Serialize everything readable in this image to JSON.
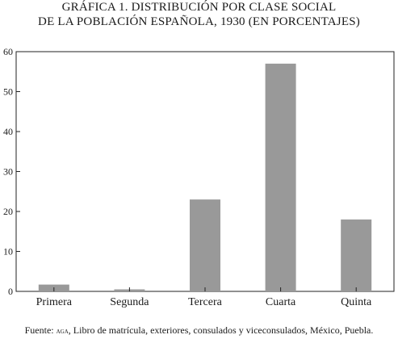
{
  "figure": {
    "title_line1": "GRÁFICA 1. DISTRIBUCIÓN POR CLASE SOCIAL",
    "title_line2": "DE LA POBLACIÓN ESPAÑOLA, 1930 (EN PORCENTAJES)",
    "source_prefix": "Fuente: ",
    "source_abbr": "aga",
    "source_text": ", Libro de matrícula, exteriores, consulados y viceconsulados, México, Puebla."
  },
  "chart_data": {
    "type": "bar",
    "title": "GRÁFICA 1. DISTRIBUCIÓN POR CLASE SOCIAL DE LA POBLACIÓN ESPAÑOLA, 1930 (EN PORCENTAJES)",
    "categories": [
      "Primera",
      "Segunda",
      "Tercera",
      "Cuarta",
      "Quinta"
    ],
    "values": [
      1.7,
      0.5,
      23,
      57,
      18
    ],
    "xlabel": "",
    "ylabel": "",
    "ylim": [
      0,
      60
    ],
    "yticks": [
      0,
      10,
      20,
      30,
      40,
      50,
      60
    ],
    "grid": false,
    "bar_color": "#999999",
    "axis_color": "#222222"
  }
}
